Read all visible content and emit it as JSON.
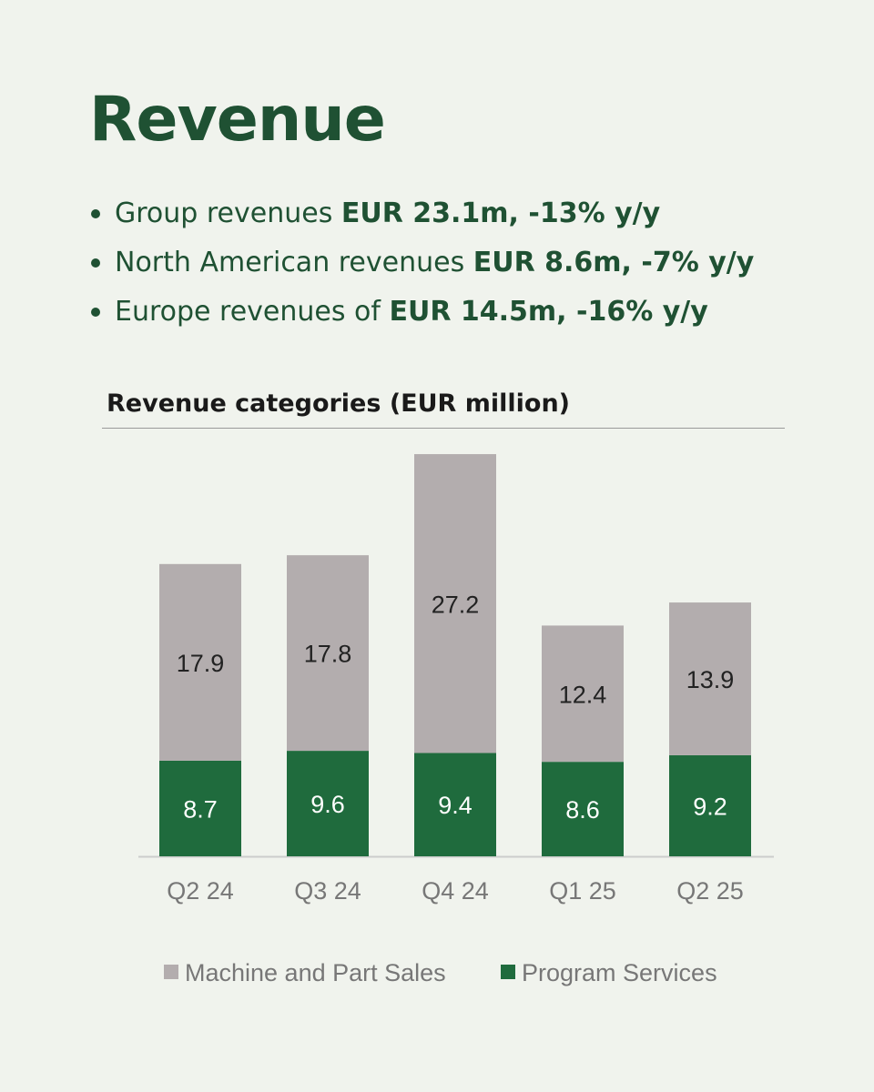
{
  "title": "Revenue",
  "bullets": [
    {
      "text": "Group revenues ",
      "bold": "EUR 23.1m, -13% y/y"
    },
    {
      "text": "North American revenues ",
      "bold": "EUR 8.6m, -7% y/y"
    },
    {
      "text": "Europe revenues of ",
      "bold": "EUR 14.5m, -16% y/y"
    }
  ],
  "chart_data": {
    "type": "bar",
    "stacked": true,
    "title": "Revenue categories (EUR million)",
    "categories": [
      "Q2 24",
      "Q3 24",
      "Q4 24",
      "Q1 25",
      "Q2 25"
    ],
    "series": [
      {
        "name": "Program Services",
        "color": "#1f6b3d",
        "label_color": "#ffffff",
        "values": [
          8.7,
          9.6,
          9.4,
          8.6,
          9.2
        ]
      },
      {
        "name": "Machine and Part Sales",
        "color": "#b3adae",
        "label_color": "#222222",
        "values": [
          17.9,
          17.8,
          27.2,
          12.4,
          13.9
        ]
      }
    ],
    "legend_order": [
      "Machine and Part Sales",
      "Program Services"
    ],
    "legend": "bottom-center",
    "xlabel": "",
    "ylabel": "",
    "ylim": [
      0,
      40
    ],
    "grid": false
  }
}
